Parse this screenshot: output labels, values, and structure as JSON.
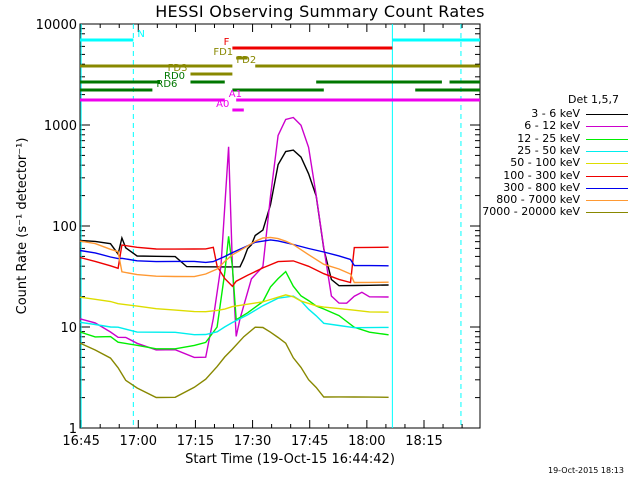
{
  "chart_data": {
    "type": "line",
    "title": "HESSI Observing Summary Count Rates",
    "xlabel": "Start Time (19-Oct-15 16:44:42)",
    "ylabel": "Count Rate (s⁻¹ detector⁻¹)",
    "y_scale": "log",
    "ylim": [
      1,
      10000
    ],
    "xlim_minutes": [
      0,
      105
    ],
    "x_ticks": [
      "16:45",
      "17:00",
      "17:15",
      "17:30",
      "17:45",
      "18:00",
      "18:15"
    ],
    "y_ticks": [
      "1",
      "10",
      "100",
      "1000",
      "10000"
    ],
    "legend_title": "Det 1,5,7",
    "legend_position": "right",
    "series": [
      {
        "name": "3 - 6 keV",
        "color": "#000000",
        "points": [
          [
            0,
            72
          ],
          [
            4,
            70
          ],
          [
            8,
            66
          ],
          [
            10,
            52
          ],
          [
            11,
            75
          ],
          [
            12,
            60
          ],
          [
            15,
            50
          ],
          [
            20,
            50
          ],
          [
            25,
            50
          ],
          [
            28,
            40
          ],
          [
            33,
            40
          ],
          [
            38,
            40
          ],
          [
            42,
            40
          ],
          [
            43,
            48
          ],
          [
            44,
            60
          ],
          [
            45,
            65
          ],
          [
            46,
            80
          ],
          [
            48,
            90
          ],
          [
            50,
            160
          ],
          [
            52,
            400
          ],
          [
            54,
            540
          ],
          [
            56,
            560
          ],
          [
            58,
            480
          ],
          [
            60,
            330
          ],
          [
            62,
            200
          ],
          [
            64,
            60
          ],
          [
            66,
            30
          ],
          [
            68,
            26
          ],
          [
            72,
            26
          ],
          [
            76,
            26
          ],
          [
            81,
            26
          ]
        ]
      },
      {
        "name": "6 - 12 keV",
        "color": "#cc00cc",
        "points": [
          [
            0,
            12
          ],
          [
            4,
            11
          ],
          [
            8,
            9
          ],
          [
            10,
            8
          ],
          [
            12,
            8
          ],
          [
            15,
            7
          ],
          [
            20,
            6
          ],
          [
            25,
            6
          ],
          [
            30,
            5
          ],
          [
            33,
            5
          ],
          [
            35,
            12
          ],
          [
            37,
            40
          ],
          [
            39,
            600
          ],
          [
            40,
            40
          ],
          [
            41,
            8
          ],
          [
            42,
            12
          ],
          [
            45,
            30
          ],
          [
            48,
            40
          ],
          [
            50,
            200
          ],
          [
            52,
            800
          ],
          [
            54,
            1150
          ],
          [
            56,
            1200
          ],
          [
            58,
            1000
          ],
          [
            60,
            600
          ],
          [
            62,
            200
          ],
          [
            64,
            60
          ],
          [
            66,
            20
          ],
          [
            68,
            17
          ],
          [
            70,
            17
          ],
          [
            72,
            20
          ],
          [
            74,
            22
          ],
          [
            76,
            20
          ],
          [
            81,
            20
          ]
        ]
      },
      {
        "name": "12 - 25 keV",
        "color": "#00ee00",
        "points": [
          [
            0,
            9
          ],
          [
            4,
            8
          ],
          [
            8,
            8
          ],
          [
            10,
            7
          ],
          [
            15,
            6.5
          ],
          [
            20,
            6
          ],
          [
            25,
            6
          ],
          [
            30,
            6.5
          ],
          [
            33,
            7
          ],
          [
            36,
            10
          ],
          [
            38,
            35
          ],
          [
            39,
            80
          ],
          [
            40,
            40
          ],
          [
            41,
            12
          ],
          [
            44,
            14
          ],
          [
            48,
            18
          ],
          [
            50,
            25
          ],
          [
            52,
            30
          ],
          [
            54,
            35
          ],
          [
            56,
            25
          ],
          [
            58,
            20
          ],
          [
            60,
            18
          ],
          [
            62,
            16
          ],
          [
            64,
            15
          ],
          [
            68,
            13
          ],
          [
            72,
            10
          ],
          [
            76,
            9
          ],
          [
            81,
            8.5
          ]
        ]
      },
      {
        "name": "25 - 50 keV",
        "color": "#00eeee",
        "points": [
          [
            0,
            11
          ],
          [
            4,
            10.5
          ],
          [
            8,
            10
          ],
          [
            10,
            10
          ],
          [
            15,
            9
          ],
          [
            20,
            9
          ],
          [
            25,
            9
          ],
          [
            30,
            8.5
          ],
          [
            33,
            8.5
          ],
          [
            36,
            9
          ],
          [
            38,
            10
          ],
          [
            40,
            11
          ],
          [
            44,
            13
          ],
          [
            48,
            16
          ],
          [
            52,
            19
          ],
          [
            56,
            20
          ],
          [
            58,
            18
          ],
          [
            60,
            15
          ],
          [
            62,
            13
          ],
          [
            64,
            11
          ],
          [
            68,
            10.5
          ],
          [
            72,
            10
          ],
          [
            76,
            10
          ],
          [
            81,
            10
          ]
        ]
      },
      {
        "name": "50 - 100 keV",
        "color": "#dddd00",
        "points": [
          [
            0,
            20
          ],
          [
            4,
            19
          ],
          [
            8,
            18
          ],
          [
            10,
            17
          ],
          [
            15,
            16
          ],
          [
            20,
            15
          ],
          [
            25,
            14.5
          ],
          [
            30,
            14
          ],
          [
            33,
            14
          ],
          [
            36,
            14.5
          ],
          [
            38,
            15
          ],
          [
            40,
            16
          ],
          [
            44,
            17
          ],
          [
            48,
            18
          ],
          [
            50,
            19
          ],
          [
            52,
            20
          ],
          [
            54,
            21
          ],
          [
            56,
            20
          ],
          [
            58,
            18
          ],
          [
            60,
            17
          ],
          [
            62,
            16
          ],
          [
            64,
            15.5
          ],
          [
            68,
            15
          ],
          [
            72,
            14.5
          ],
          [
            76,
            14
          ],
          [
            81,
            14
          ]
        ]
      },
      {
        "name": "100 - 300 keV",
        "color": "#ee0000",
        "points": [
          [
            0,
            48
          ],
          [
            4,
            44
          ],
          [
            8,
            40
          ],
          [
            10,
            38
          ],
          [
            11,
            65
          ],
          [
            15,
            62
          ],
          [
            20,
            60
          ],
          [
            25,
            60
          ],
          [
            30,
            60
          ],
          [
            33,
            60
          ],
          [
            35,
            62
          ],
          [
            36,
            40
          ],
          [
            38,
            30
          ],
          [
            40,
            25
          ],
          [
            41,
            28
          ],
          [
            44,
            32
          ],
          [
            48,
            38
          ],
          [
            52,
            44
          ],
          [
            56,
            45
          ],
          [
            60,
            40
          ],
          [
            64,
            34
          ],
          [
            68,
            30
          ],
          [
            71,
            28
          ],
          [
            72,
            62
          ],
          [
            76,
            62
          ],
          [
            81,
            62
          ]
        ]
      },
      {
        "name": "300 - 800 keV",
        "color": "#0000ee",
        "points": [
          [
            0,
            58
          ],
          [
            4,
            55
          ],
          [
            8,
            50
          ],
          [
            10,
            48
          ],
          [
            11,
            48
          ],
          [
            15,
            45
          ],
          [
            20,
            44
          ],
          [
            25,
            44
          ],
          [
            30,
            44
          ],
          [
            33,
            43
          ],
          [
            35,
            44
          ],
          [
            36,
            46
          ],
          [
            38,
            50
          ],
          [
            40,
            55
          ],
          [
            43,
            62
          ],
          [
            46,
            70
          ],
          [
            50,
            74
          ],
          [
            52,
            72
          ],
          [
            56,
            66
          ],
          [
            60,
            60
          ],
          [
            64,
            55
          ],
          [
            68,
            50
          ],
          [
            71,
            46
          ],
          [
            72,
            40
          ],
          [
            76,
            40
          ],
          [
            81,
            40
          ]
        ]
      },
      {
        "name": "800 - 7000 keV",
        "color": "#ff9933",
        "points": [
          [
            0,
            70
          ],
          [
            4,
            66
          ],
          [
            8,
            58
          ],
          [
            10,
            55
          ],
          [
            11,
            35
          ],
          [
            15,
            33
          ],
          [
            20,
            32
          ],
          [
            25,
            32
          ],
          [
            30,
            32
          ],
          [
            33,
            34
          ],
          [
            36,
            38
          ],
          [
            38,
            45
          ],
          [
            40,
            52
          ],
          [
            43,
            60
          ],
          [
            46,
            70
          ],
          [
            48,
            75
          ],
          [
            50,
            76
          ],
          [
            52,
            74
          ],
          [
            54,
            70
          ],
          [
            56,
            65
          ],
          [
            60,
            52
          ],
          [
            64,
            42
          ],
          [
            68,
            38
          ],
          [
            71,
            34
          ],
          [
            72,
            28
          ],
          [
            76,
            28
          ],
          [
            81,
            28
          ]
        ]
      },
      {
        "name": "7000 - 20000 keV",
        "color": "#888800",
        "points": [
          [
            0,
            7
          ],
          [
            4,
            6
          ],
          [
            8,
            5
          ],
          [
            10,
            4
          ],
          [
            12,
            3
          ],
          [
            15,
            2.5
          ],
          [
            20,
            2
          ],
          [
            25,
            2
          ],
          [
            30,
            2.5
          ],
          [
            33,
            3
          ],
          [
            36,
            4
          ],
          [
            38,
            5
          ],
          [
            40,
            6
          ],
          [
            43,
            8
          ],
          [
            46,
            10
          ],
          [
            48,
            10
          ],
          [
            50,
            9
          ],
          [
            52,
            8
          ],
          [
            54,
            7
          ],
          [
            56,
            5
          ],
          [
            58,
            4
          ],
          [
            60,
            3
          ],
          [
            62,
            2.5
          ],
          [
            64,
            2
          ],
          [
            68,
            2
          ],
          [
            72,
            2
          ],
          [
            76,
            2
          ],
          [
            81,
            2
          ]
        ]
      }
    ],
    "flag_bars": [
      {
        "label": "N",
        "color": "#00ffff",
        "segments": [
          [
            0,
            14
          ],
          [
            82,
            105
          ]
        ]
      },
      {
        "label": "F",
        "color": "#ee0000",
        "segments": [
          [
            40,
            82
          ]
        ]
      },
      {
        "label": "FD1",
        "color": "#888800",
        "segments": [
          [
            41,
            44
          ]
        ]
      },
      {
        "label": "FD2",
        "color": "#888800",
        "segments": [
          [
            0,
            40
          ],
          [
            46,
            105
          ]
        ]
      },
      {
        "label": "FD3",
        "color": "#888800",
        "segments": [
          [
            29,
            40
          ]
        ]
      },
      {
        "label": "RD0",
        "color": "#007700",
        "segments": [
          [
            0,
            21
          ],
          [
            29,
            38
          ],
          [
            62,
            95
          ],
          [
            97,
            105
          ]
        ]
      },
      {
        "label": "RD6",
        "color": "#007700",
        "segments": [
          [
            0,
            19
          ],
          [
            40,
            64
          ],
          [
            88,
            105
          ]
        ]
      },
      {
        "label": "A1",
        "color": "#ee00ee",
        "segments": [
          [
            0,
            38
          ],
          [
            41,
            105
          ]
        ]
      },
      {
        "label": "A0",
        "color": "#ee00ee",
        "segments": [
          [
            40,
            43
          ]
        ]
      }
    ]
  },
  "footer_stamp": "19-Oct-2015 18:13"
}
